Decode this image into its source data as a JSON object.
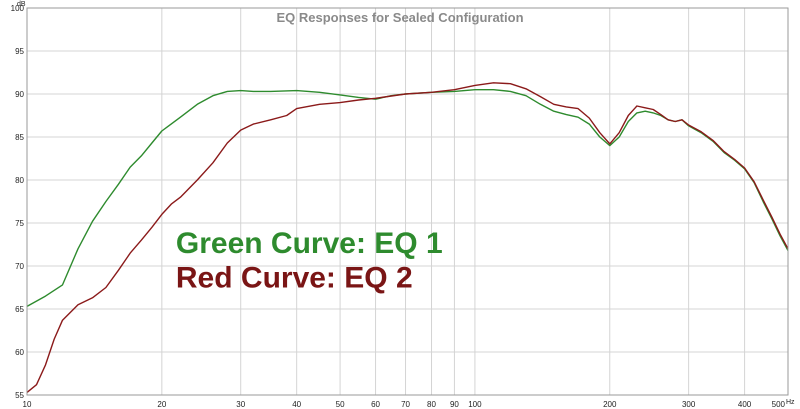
{
  "chart_data": {
    "type": "line",
    "title": "EQ Responses for Sealed Configuration",
    "y_unit": "dB",
    "x_unit": "Hz",
    "xscale": "log",
    "xlim": [
      10,
      500
    ],
    "ylim": [
      55,
      100
    ],
    "x_ticks": [
      10,
      20,
      30,
      40,
      50,
      60,
      70,
      80,
      90,
      100,
      200,
      300,
      400,
      500
    ],
    "y_ticks": [
      55,
      60,
      65,
      70,
      75,
      80,
      85,
      90,
      95,
      100
    ],
    "grid": true,
    "series": [
      {
        "color": "#2e8b2e",
        "points": [
          [
            10,
            65.3
          ],
          [
            11,
            66.5
          ],
          [
            12,
            67.8
          ],
          [
            13,
            72.0
          ],
          [
            14,
            75.2
          ],
          [
            15,
            77.5
          ],
          [
            16,
            79.5
          ],
          [
            17,
            81.5
          ],
          [
            18,
            82.8
          ],
          [
            19,
            84.3
          ],
          [
            20,
            85.7
          ],
          [
            22,
            87.3
          ],
          [
            24,
            88.8
          ],
          [
            26,
            89.8
          ],
          [
            28,
            90.3
          ],
          [
            30,
            90.4
          ],
          [
            32,
            90.3
          ],
          [
            35,
            90.3
          ],
          [
            40,
            90.4
          ],
          [
            45,
            90.2
          ],
          [
            50,
            89.9
          ],
          [
            55,
            89.6
          ],
          [
            60,
            89.4
          ],
          [
            65,
            89.8
          ],
          [
            70,
            90.0
          ],
          [
            80,
            90.2
          ],
          [
            90,
            90.3
          ],
          [
            100,
            90.5
          ],
          [
            110,
            90.5
          ],
          [
            120,
            90.3
          ],
          [
            130,
            89.8
          ],
          [
            140,
            88.8
          ],
          [
            150,
            88.0
          ],
          [
            160,
            87.6
          ],
          [
            170,
            87.3
          ],
          [
            180,
            86.5
          ],
          [
            190,
            85.0
          ],
          [
            200,
            84.0
          ],
          [
            210,
            85.0
          ],
          [
            220,
            86.8
          ],
          [
            230,
            87.8
          ],
          [
            240,
            88.0
          ],
          [
            250,
            87.8
          ],
          [
            260,
            87.5
          ],
          [
            270,
            87.0
          ],
          [
            280,
            86.8
          ],
          [
            290,
            87.0
          ],
          [
            300,
            86.3
          ],
          [
            320,
            85.5
          ],
          [
            340,
            84.5
          ],
          [
            360,
            83.2
          ],
          [
            380,
            82.3
          ],
          [
            400,
            81.3
          ],
          [
            420,
            79.7
          ],
          [
            440,
            77.5
          ],
          [
            460,
            75.5
          ],
          [
            480,
            73.5
          ],
          [
            500,
            71.8
          ]
        ]
      },
      {
        "color": "#8b1a1a",
        "points": [
          [
            10,
            55.3
          ],
          [
            10.5,
            56.2
          ],
          [
            11,
            58.5
          ],
          [
            11.5,
            61.5
          ],
          [
            12,
            63.7
          ],
          [
            13,
            65.5
          ],
          [
            14,
            66.3
          ],
          [
            15,
            67.5
          ],
          [
            16,
            69.5
          ],
          [
            17,
            71.5
          ],
          [
            18,
            73.0
          ],
          [
            19,
            74.5
          ],
          [
            20,
            76.0
          ],
          [
            21,
            77.2
          ],
          [
            22,
            78.0
          ],
          [
            24,
            80.0
          ],
          [
            26,
            82.0
          ],
          [
            28,
            84.3
          ],
          [
            30,
            85.8
          ],
          [
            32,
            86.5
          ],
          [
            35,
            87.0
          ],
          [
            38,
            87.5
          ],
          [
            40,
            88.3
          ],
          [
            45,
            88.8
          ],
          [
            50,
            89.0
          ],
          [
            55,
            89.3
          ],
          [
            60,
            89.5
          ],
          [
            70,
            90.0
          ],
          [
            80,
            90.2
          ],
          [
            90,
            90.5
          ],
          [
            100,
            91.0
          ],
          [
            110,
            91.3
          ],
          [
            120,
            91.2
          ],
          [
            130,
            90.6
          ],
          [
            140,
            89.7
          ],
          [
            150,
            88.8
          ],
          [
            160,
            88.5
          ],
          [
            170,
            88.3
          ],
          [
            180,
            87.2
          ],
          [
            190,
            85.5
          ],
          [
            200,
            84.2
          ],
          [
            210,
            85.5
          ],
          [
            220,
            87.5
          ],
          [
            230,
            88.6
          ],
          [
            240,
            88.4
          ],
          [
            250,
            88.2
          ],
          [
            260,
            87.6
          ],
          [
            270,
            87.0
          ],
          [
            280,
            86.8
          ],
          [
            290,
            87.0
          ],
          [
            300,
            86.4
          ],
          [
            320,
            85.6
          ],
          [
            340,
            84.6
          ],
          [
            360,
            83.3
          ],
          [
            380,
            82.4
          ],
          [
            400,
            81.4
          ],
          [
            420,
            79.8
          ],
          [
            440,
            77.7
          ],
          [
            460,
            75.7
          ],
          [
            480,
            73.7
          ],
          [
            500,
            72.0
          ]
        ]
      }
    ],
    "annotations": [
      {
        "text": "Green Curve: EQ 1",
        "color": "#2e8b2e",
        "x": 21.5,
        "y": 71.5
      },
      {
        "text": "Red Curve: EQ 2",
        "color": "#7a1515",
        "x": 21.5,
        "y": 67.5
      }
    ]
  }
}
